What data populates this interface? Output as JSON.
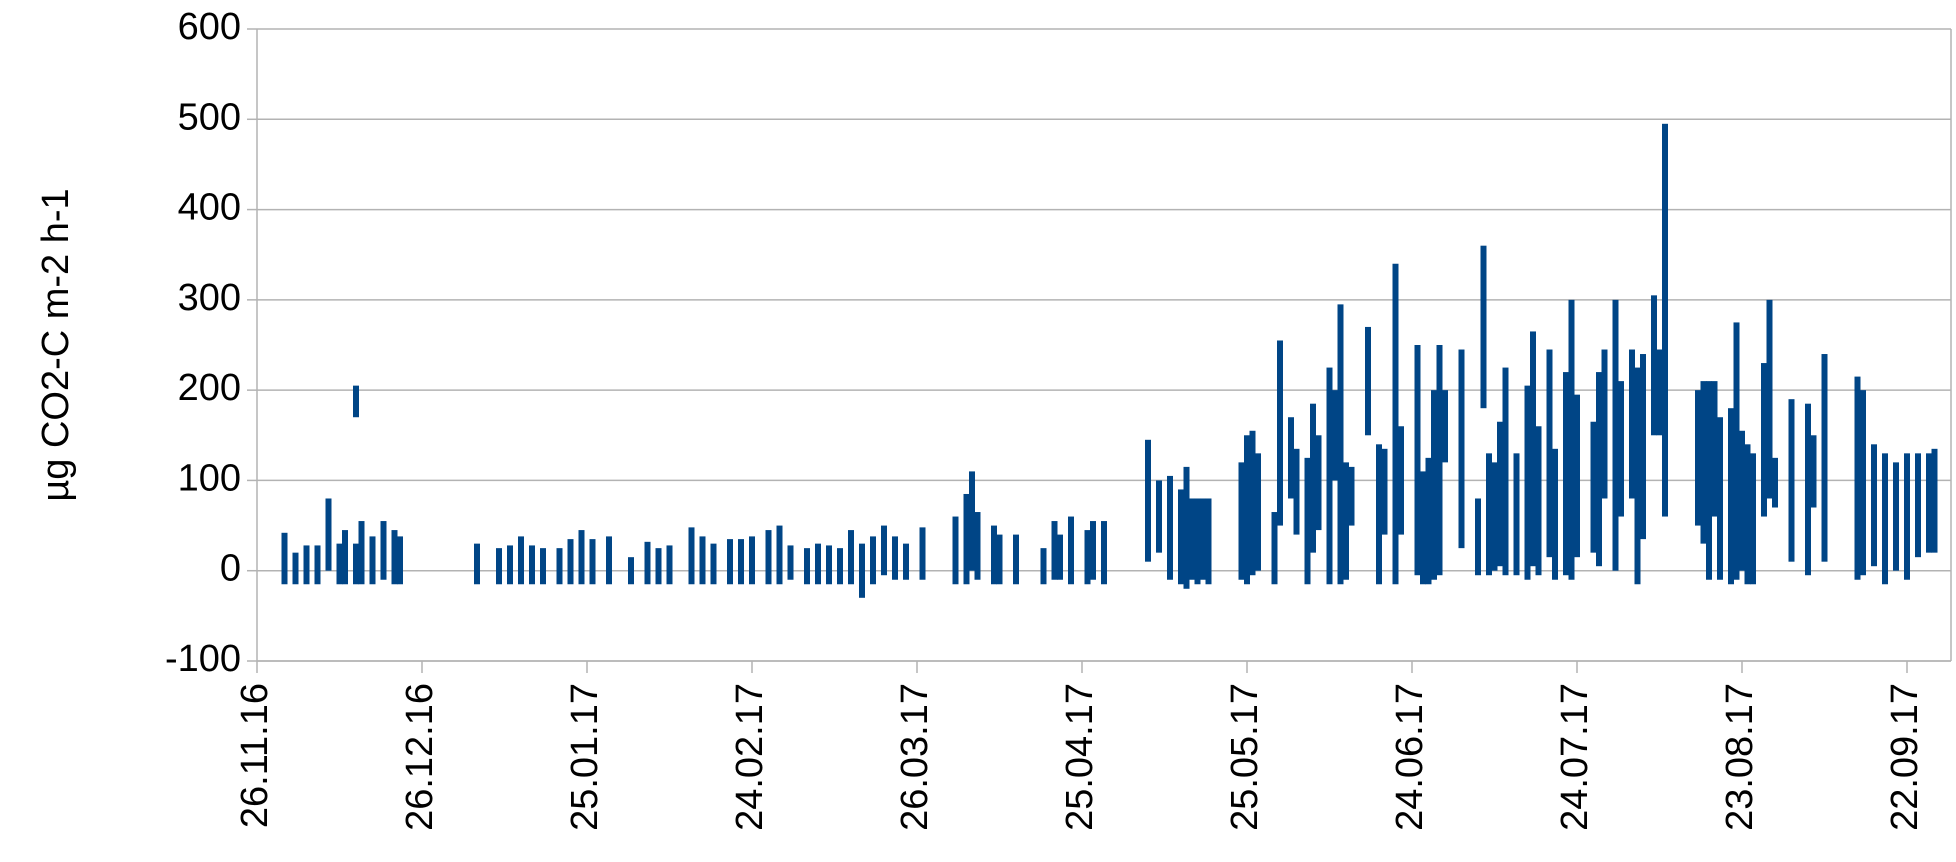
{
  "chart_data": {
    "type": "range_bar",
    "y_label": "µg CO2-C m-2 h-1",
    "color": "#004586",
    "grid": true,
    "ylim": [
      -100,
      600
    ],
    "yticks": [
      -100,
      0,
      100,
      200,
      300,
      400,
      500,
      600
    ],
    "xlim": [
      "2016-11-26",
      "2017-09-30"
    ],
    "xticks": [
      {
        "value": "2016-11-26",
        "label": "26.11.16"
      },
      {
        "value": "2016-12-26",
        "label": "26.12.16"
      },
      {
        "value": "2017-01-25",
        "label": "25.01.17"
      },
      {
        "value": "2017-02-24",
        "label": "24.02.17"
      },
      {
        "value": "2017-03-26",
        "label": "26.03.17"
      },
      {
        "value": "2017-04-25",
        "label": "25.04.17"
      },
      {
        "value": "2017-05-25",
        "label": "25.05.17"
      },
      {
        "value": "2017-06-24",
        "label": "24.06.17"
      },
      {
        "value": "2017-07-24",
        "label": "24.07.17"
      },
      {
        "value": "2017-08-23",
        "label": "23.08.17"
      },
      {
        "value": "2017-09-22",
        "label": "22.09.17"
      }
    ],
    "x": [
      "2016-12-01",
      "2016-12-03",
      "2016-12-05",
      "2016-12-07",
      "2016-12-09",
      "2016-12-11",
      "2016-12-12",
      "2016-12-14",
      "2016-12-14",
      "2016-12-15",
      "2016-12-17",
      "2016-12-19",
      "2016-12-21",
      "2016-12-22",
      "2017-01-05",
      "2017-01-09",
      "2017-01-11",
      "2017-01-13",
      "2017-01-15",
      "2017-01-17",
      "2017-01-20",
      "2017-01-22",
      "2017-01-24",
      "2017-01-26",
      "2017-01-29",
      "2017-02-02",
      "2017-02-05",
      "2017-02-07",
      "2017-02-09",
      "2017-02-13",
      "2017-02-15",
      "2017-02-17",
      "2017-02-20",
      "2017-02-22",
      "2017-02-24",
      "2017-02-27",
      "2017-03-01",
      "2017-03-03",
      "2017-03-06",
      "2017-03-08",
      "2017-03-10",
      "2017-03-12",
      "2017-03-14",
      "2017-03-16",
      "2017-03-18",
      "2017-03-20",
      "2017-03-22",
      "2017-03-24",
      "2017-03-27",
      "2017-04-02",
      "2017-04-04",
      "2017-04-05",
      "2017-04-06",
      "2017-04-09",
      "2017-04-10",
      "2017-04-13",
      "2017-04-18",
      "2017-04-20",
      "2017-04-21",
      "2017-04-23",
      "2017-04-26",
      "2017-04-27",
      "2017-04-29",
      "2017-05-07",
      "2017-05-09",
      "2017-05-11",
      "2017-05-13",
      "2017-05-14",
      "2017-05-15",
      "2017-05-16",
      "2017-05-17",
      "2017-05-18",
      "2017-05-24",
      "2017-05-25",
      "2017-05-26",
      "2017-05-27",
      "2017-05-30",
      "2017-05-31",
      "2017-06-02",
      "2017-06-03",
      "2017-06-05",
      "2017-06-06",
      "2017-06-07",
      "2017-06-09",
      "2017-06-10",
      "2017-06-11",
      "2017-06-12",
      "2017-06-13",
      "2017-06-16",
      "2017-06-18",
      "2017-06-19",
      "2017-06-21",
      "2017-06-22",
      "2017-06-25",
      "2017-06-26",
      "2017-06-27",
      "2017-06-28",
      "2017-06-29",
      "2017-06-30",
      "2017-07-03",
      "2017-07-06",
      "2017-07-07",
      "2017-07-08",
      "2017-07-09",
      "2017-07-10",
      "2017-07-11",
      "2017-07-13",
      "2017-07-15",
      "2017-07-16",
      "2017-07-17",
      "2017-07-19",
      "2017-07-20",
      "2017-07-22",
      "2017-07-23",
      "2017-07-24",
      "2017-07-27",
      "2017-07-28",
      "2017-07-29",
      "2017-07-31",
      "2017-08-01",
      "2017-08-03",
      "2017-08-04",
      "2017-08-05",
      "2017-08-07",
      "2017-08-08",
      "2017-08-09",
      "2017-08-15",
      "2017-08-16",
      "2017-08-17",
      "2017-08-18",
      "2017-08-19",
      "2017-08-21",
      "2017-08-22",
      "2017-08-23",
      "2017-08-24",
      "2017-08-25",
      "2017-08-27",
      "2017-08-28",
      "2017-08-29",
      "2017-09-01",
      "2017-09-04",
      "2017-09-05",
      "2017-09-07",
      "2017-09-13",
      "2017-09-14",
      "2017-09-16",
      "2017-09-18",
      "2017-09-20",
      "2017-09-22",
      "2017-09-24",
      "2017-09-26",
      "2017-09-27"
    ],
    "low": [
      -15,
      -15,
      -15,
      -15,
      0,
      -15,
      -15,
      170,
      -15,
      -15,
      -15,
      -10,
      -15,
      -15,
      -15,
      -15,
      -15,
      -15,
      -15,
      -15,
      -15,
      -15,
      -15,
      -15,
      -15,
      -15,
      -15,
      -15,
      -15,
      -15,
      -15,
      -15,
      -15,
      -15,
      -15,
      -15,
      -15,
      -10,
      -15,
      -15,
      -15,
      -15,
      -15,
      -30,
      -15,
      -5,
      -10,
      -10,
      -10,
      -15,
      -15,
      0,
      -10,
      -15,
      -15,
      -15,
      -15,
      -10,
      -10,
      -15,
      -15,
      -10,
      -15,
      10,
      20,
      -10,
      -15,
      -20,
      -10,
      -15,
      -10,
      -15,
      -10,
      -15,
      -5,
      0,
      -15,
      50,
      80,
      40,
      -15,
      20,
      45,
      -15,
      100,
      -15,
      -10,
      50,
      150,
      -15,
      40,
      -15,
      40,
      -5,
      -15,
      -15,
      -10,
      -5,
      120,
      25,
      -5,
      180,
      -5,
      0,
      5,
      -5,
      -5,
      -10,
      5,
      -5,
      15,
      -10,
      -5,
      -10,
      15,
      20,
      5,
      80,
      0,
      60,
      80,
      -15,
      35,
      150,
      150,
      60,
      50,
      30,
      -10,
      60,
      -10,
      -15,
      -10,
      0,
      -15,
      -15,
      60,
      80,
      70,
      10,
      -5,
      70,
      10,
      -10,
      -5,
      5,
      -15,
      0,
      -10,
      15,
      20,
      20
    ],
    "high": [
      42,
      20,
      28,
      28,
      80,
      30,
      45,
      205,
      30,
      55,
      38,
      55,
      45,
      38,
      30,
      25,
      28,
      38,
      28,
      25,
      25,
      35,
      45,
      35,
      38,
      15,
      32,
      25,
      28,
      48,
      38,
      30,
      35,
      35,
      38,
      45,
      50,
      28,
      25,
      30,
      28,
      25,
      45,
      30,
      38,
      50,
      38,
      30,
      48,
      60,
      85,
      110,
      65,
      50,
      40,
      40,
      25,
      55,
      40,
      60,
      45,
      55,
      55,
      145,
      100,
      105,
      90,
      115,
      80,
      80,
      80,
      80,
      120,
      150,
      155,
      130,
      65,
      255,
      170,
      135,
      125,
      185,
      150,
      225,
      200,
      295,
      120,
      115,
      270,
      140,
      135,
      340,
      160,
      250,
      110,
      125,
      200,
      250,
      200,
      245,
      80,
      360,
      130,
      120,
      165,
      225,
      130,
      205,
      265,
      160,
      245,
      135,
      220,
      300,
      195,
      165,
      220,
      245,
      300,
      210,
      245,
      225,
      240,
      305,
      245,
      495,
      200,
      210,
      210,
      210,
      170,
      180,
      275,
      155,
      140,
      130,
      230,
      300,
      125,
      190,
      185,
      150,
      240,
      215,
      200,
      140,
      130,
      120,
      130,
      130,
      130,
      135
    ]
  }
}
